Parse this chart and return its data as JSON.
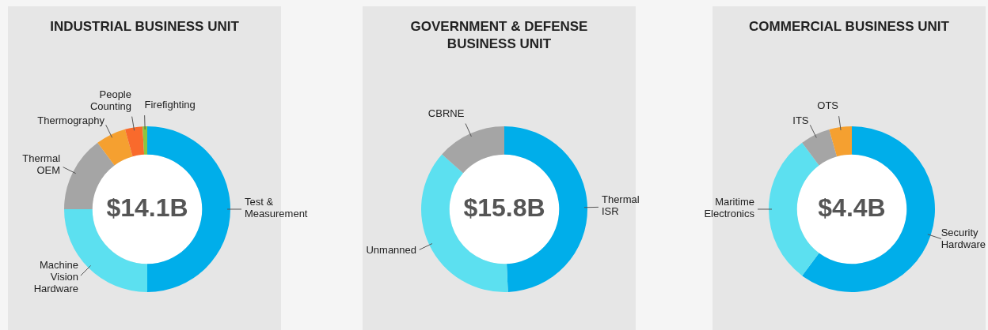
{
  "chart_data": [
    {
      "type": "donut",
      "title": "INDUSTRIAL BUSINESS UNIT",
      "categories": [
        "Test & Measurement",
        "Machine Vision Hardware",
        "Thermal OEM",
        "Thermography",
        "People Counting",
        "Firefighting"
      ],
      "values": [
        50,
        25,
        14.8,
        5.9,
        3.4,
        0.9
      ],
      "colors": [
        "#00aeea",
        "#5ce0f0",
        "#a5a5a5",
        "#f5a030",
        "#f96a2c",
        "#8cc63f"
      ],
      "annotations": [
        "$14.1B"
      ]
    },
    {
      "type": "donut",
      "title": "GOVERNMENT & DEFENSE BUSINESS UNIT",
      "categories": [
        "Thermal ISR",
        "Unmanned",
        "CBRNE"
      ],
      "values": [
        49.3,
        37.2,
        13.5
      ],
      "colors": [
        "#00aeea",
        "#5ce0f0",
        "#a5a5a5"
      ],
      "annotations": [
        "$15.8B"
      ]
    },
    {
      "type": "donut",
      "title": "COMMERCIAL BUSINESS UNIT",
      "categories": [
        "Security Hardware",
        "Maritime Electronics",
        "ITS",
        "OTS"
      ],
      "values": [
        60.2,
        29.6,
        5.8,
        4.4
      ],
      "colors": [
        "#00aeea",
        "#5ce0f0",
        "#a5a5a5",
        "#f5a030"
      ],
      "annotations": [
        "$4.4B"
      ]
    }
  ]
}
